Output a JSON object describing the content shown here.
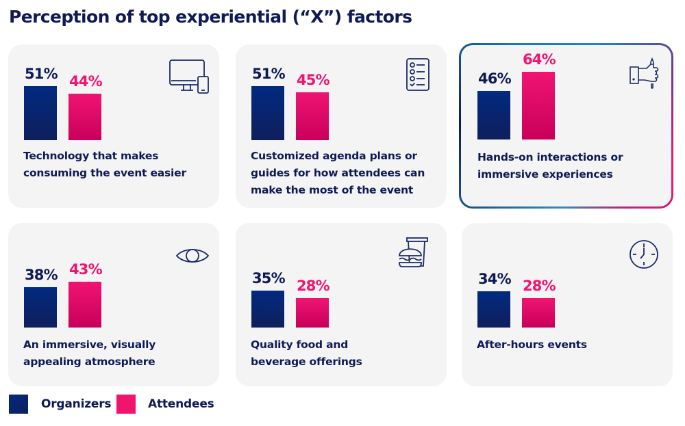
{
  "title": "Perception of top experiential (“X”) factors",
  "colors": {
    "organizers": "#0e1a55",
    "attendees": "#f0146e",
    "card_bg": "#f4f4f5"
  },
  "legend": [
    {
      "label": "Organizers",
      "color": "#0e1a55"
    },
    {
      "label": "Attendees",
      "color": "#f0146e"
    }
  ],
  "chart_data": {
    "type": "bar",
    "title": "Perception of top experiential (“X”) factors",
    "xlabel": "",
    "ylabel": "",
    "ylim": [
      0,
      100
    ],
    "categories": [
      "Technology that makes consuming the event easier",
      "Customized agenda plans or guides for how attendees can make the most of the event",
      "Hands-on interactions or immersive experiences",
      "An immersive, visually appealing atmosphere",
      "Quality food and beverage offerings",
      "After-hours events"
    ],
    "series": [
      {
        "name": "Organizers",
        "values": [
          51,
          51,
          46,
          38,
          35,
          34
        ]
      },
      {
        "name": "Attendees",
        "values": [
          44,
          45,
          64,
          43,
          28,
          28
        ]
      }
    ],
    "legend_position": "bottom-left",
    "highlighted_category": "Hands-on interactions or immersive experiences"
  },
  "cards": [
    {
      "label_lines": [
        "Technology that makes",
        "consuming the event easier"
      ],
      "org_text": "51%",
      "att_text": "44%",
      "icon": "devices-icon"
    },
    {
      "label_lines": [
        "Customized agenda plans or",
        "guides for how attendees can",
        "make the most of the event"
      ],
      "org_text": "51%",
      "att_text": "45%",
      "icon": "checklist-icon"
    },
    {
      "label_lines": [
        "Hands-on interactions or",
        "immersive experiences"
      ],
      "org_text": "46%",
      "att_text": "64%",
      "icon": "hand-holding-pen-icon"
    },
    {
      "label_lines": [
        "An immersive, visually",
        "appealing atmosphere"
      ],
      "org_text": "38%",
      "att_text": "43%",
      "icon": "eye-icon"
    },
    {
      "label_lines": [
        "Quality food and",
        "beverage offerings"
      ],
      "org_text": "35%",
      "att_text": "28%",
      "icon": "burger-drink-icon"
    },
    {
      "label_lines": [
        "After-hours events"
      ],
      "org_text": "34%",
      "att_text": "28%",
      "icon": "clock-icon"
    }
  ]
}
